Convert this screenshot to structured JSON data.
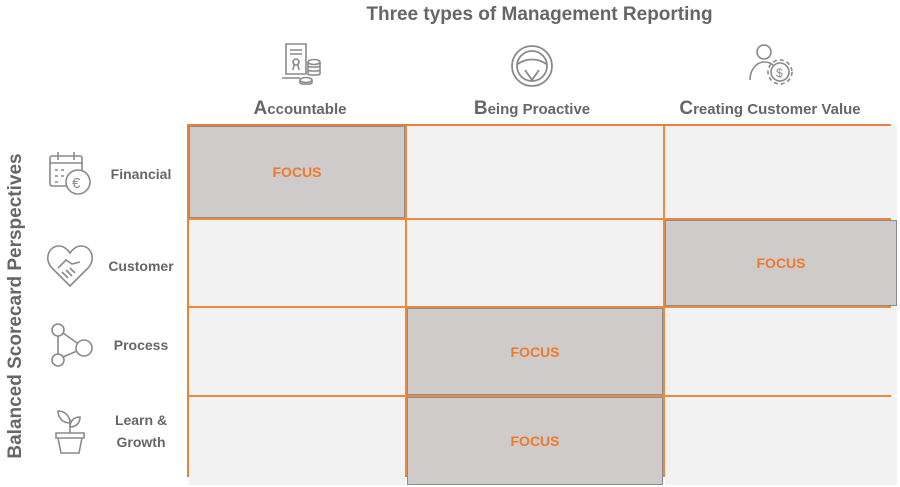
{
  "title": "Three types of Management Reporting",
  "side_label": "Balanced Scorecard Perspectives",
  "columns": [
    {
      "initial": "A",
      "rest": "ccountable",
      "icon": "document-coins-icon"
    },
    {
      "initial": "B",
      "rest": "eing Proactive",
      "icon": "steering-wheel-icon"
    },
    {
      "initial": "C",
      "rest": "reating Customer Value",
      "icon": "person-dollar-gear-icon"
    }
  ],
  "rows": [
    {
      "label": "Financial",
      "icon": "calendar-euro-icon"
    },
    {
      "label": "Customer",
      "icon": "heart-handshake-icon"
    },
    {
      "label": "Process",
      "icon": "nodes-network-icon"
    },
    {
      "label_line1": "Learn &",
      "label_line2": "Growth",
      "icon": "plant-pot-icon"
    }
  ],
  "focus_text": "FOCUS",
  "focus_cells": [
    {
      "row": 0,
      "col": 0
    },
    {
      "row": 1,
      "col": 2
    },
    {
      "row": 2,
      "col": 1
    },
    {
      "row": 3,
      "col": 1
    }
  ],
  "colors": {
    "accent": "#ee7a2a",
    "focus_fill": "#cfcbcb",
    "cell_fill": "#f2f2f2",
    "text": "#666666"
  }
}
